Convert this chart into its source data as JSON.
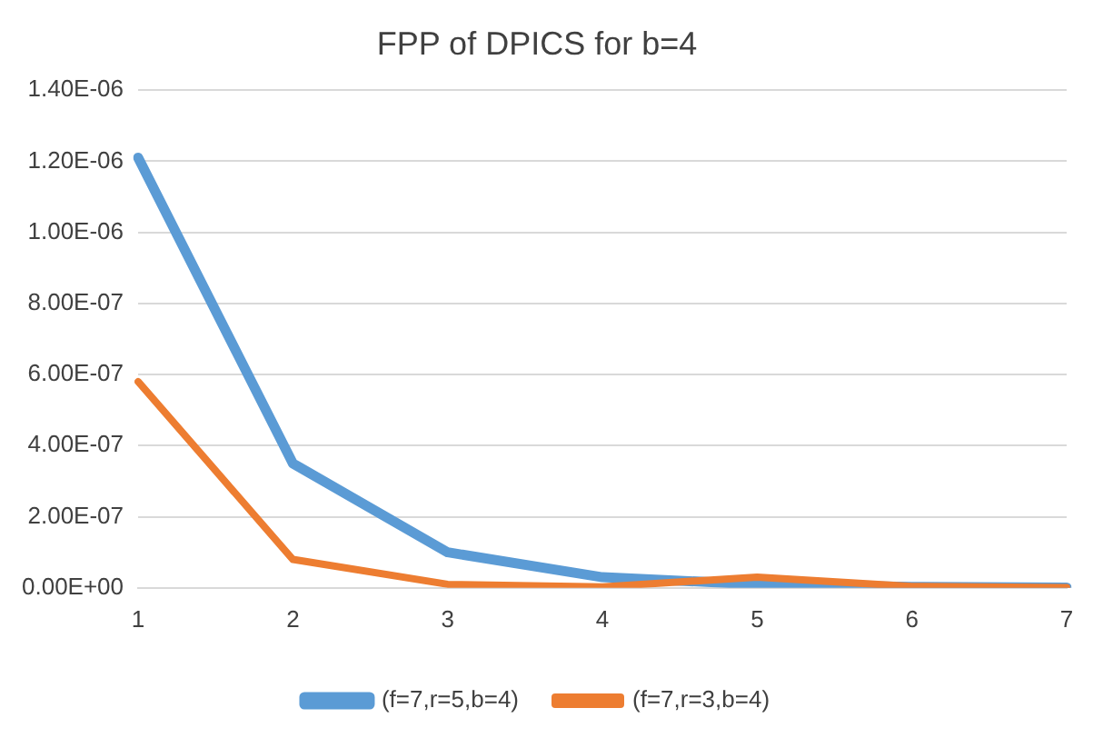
{
  "chart_data": {
    "type": "line",
    "title": "FPP of DPICS for b=4",
    "categories": [
      "1",
      "2",
      "3",
      "4",
      "5",
      "6",
      "7"
    ],
    "series": [
      {
        "name": "(f=7,r=5,b=4)",
        "color": "#5b9bd5",
        "values": [
          1.21e-06,
          3.5e-07,
          1e-07,
          3e-08,
          1e-08,
          3e-09,
          1e-09
        ]
      },
      {
        "name": "(f=7,r=3,b=4)",
        "color": "#ed7d31",
        "values": [
          5.8e-07,
          8e-08,
          1e-08,
          3e-09,
          3e-08,
          4e-09,
          1e-09
        ]
      }
    ],
    "ylim": [
      0,
      1.4e-06
    ],
    "yticks": [
      {
        "value": 0,
        "label": "0.00E+00"
      },
      {
        "value": 2e-07,
        "label": "2.00E-07"
      },
      {
        "value": 4e-07,
        "label": "4.00E-07"
      },
      {
        "value": 6e-07,
        "label": "6.00E-07"
      },
      {
        "value": 8e-07,
        "label": "8.00E-07"
      },
      {
        "value": 1e-06,
        "label": "1.00E-06"
      },
      {
        "value": 1.2e-06,
        "label": "1.20E-06"
      },
      {
        "value": 1.4e-06,
        "label": "1.40E-06"
      }
    ],
    "grid": "y",
    "legend": "bottom",
    "marker": "none",
    "line_style": "solid"
  }
}
